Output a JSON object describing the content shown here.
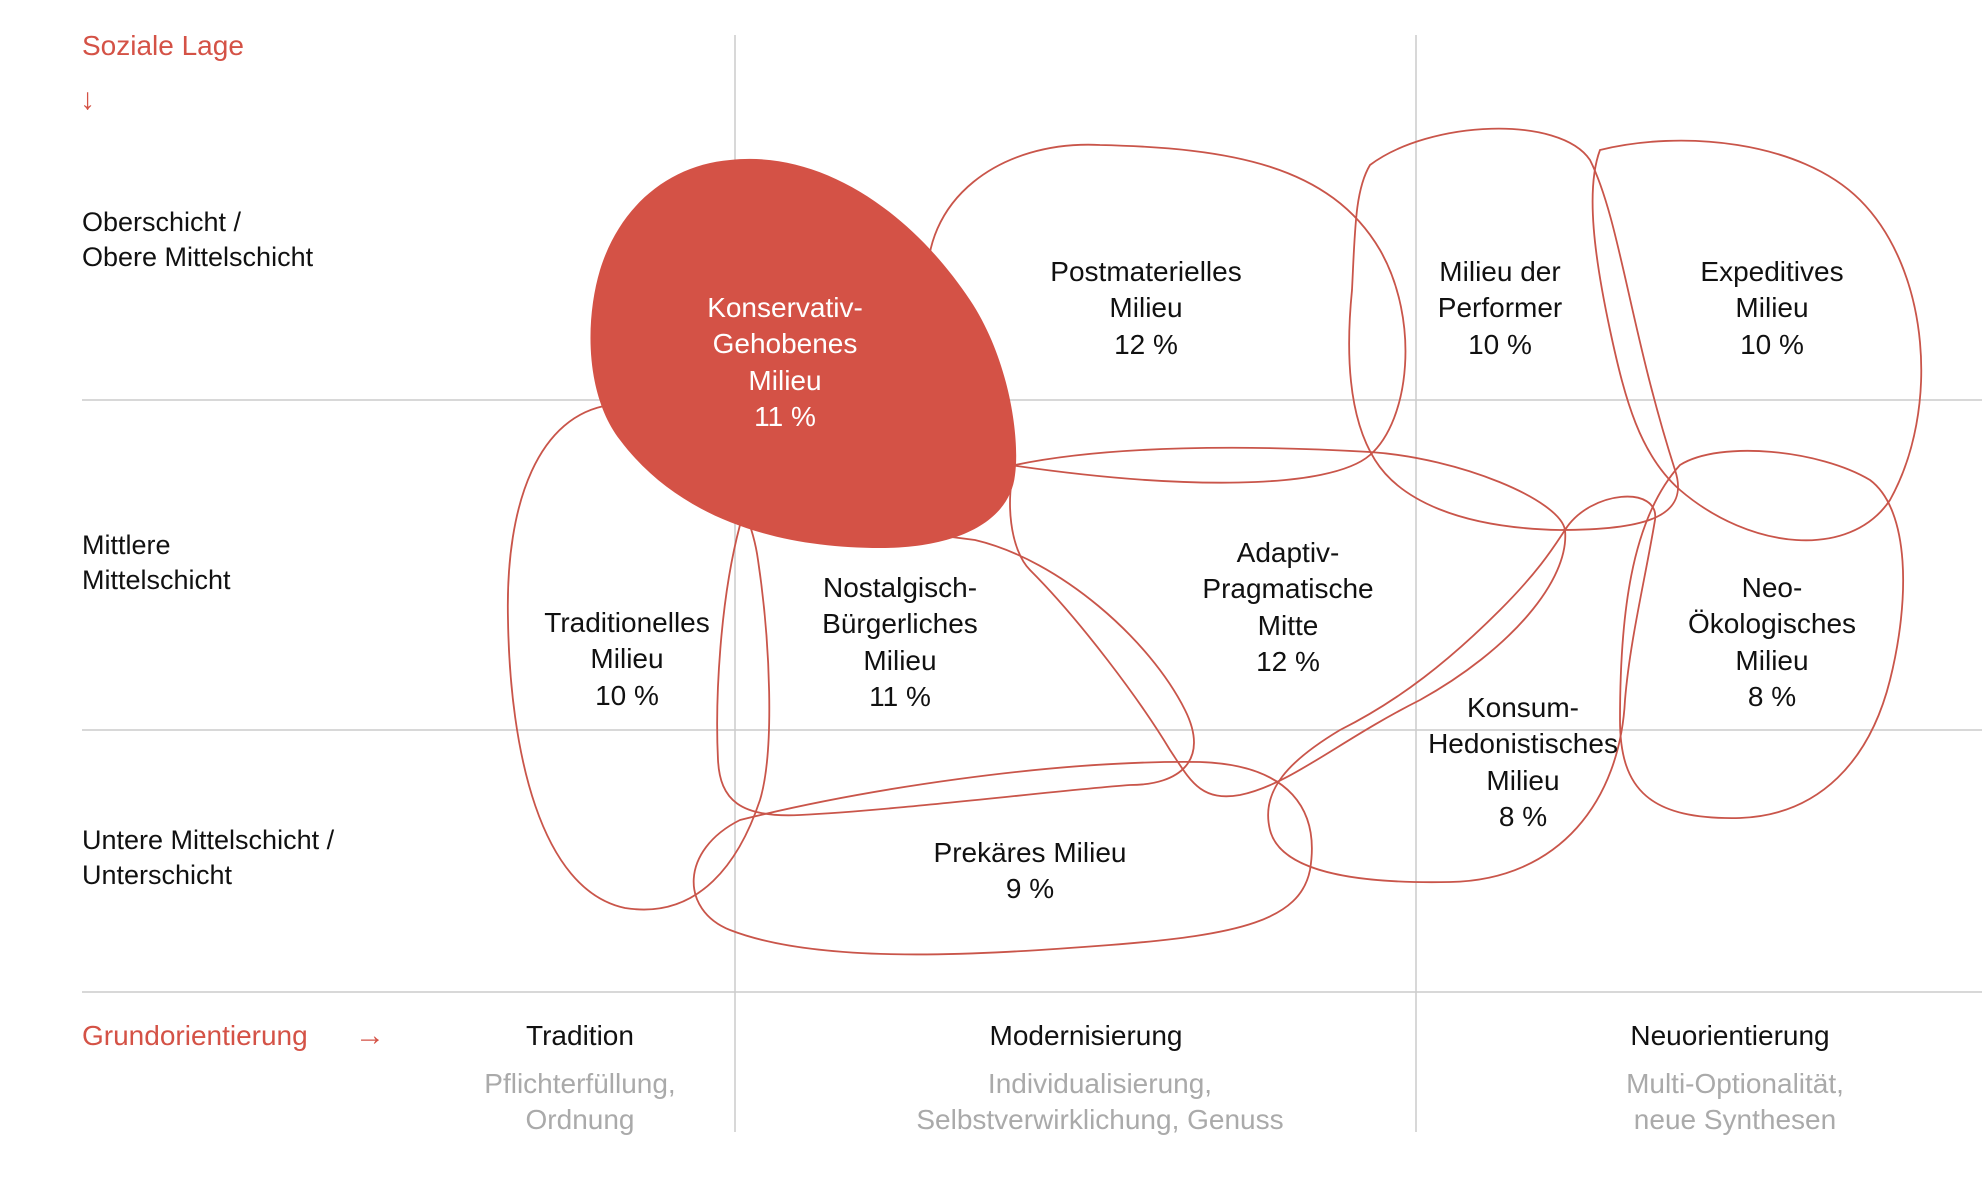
{
  "axes": {
    "y_title": "Soziale Lage",
    "y_arrow": "↓",
    "x_title": "Grundorientierung",
    "x_arrow": "→"
  },
  "rows": [
    "Oberschicht /\nObere Mittelschicht",
    "Mittlere\nMittelschicht",
    "Untere Mittelschicht /\nUnterschicht"
  ],
  "columns": [
    {
      "name": "Tradition",
      "desc": "Pflichterfüllung,\nOrdnung"
    },
    {
      "name": "Modernisierung",
      "desc": "Individualisierung,\nSelbstverwirklichung, Genuss"
    },
    {
      "name": "Neuorientierung",
      "desc": "Multi-Optionalität,\nneue Synthesen"
    }
  ],
  "milieus": [
    {
      "label": "Konservativ-\nGehobenes\nMilieu\n11 %",
      "highlighted": true
    },
    {
      "label": "Postmaterielles\nMilieu\n12 %"
    },
    {
      "label": "Milieu der\nPerformer\n10 %"
    },
    {
      "label": "Expeditives\nMilieu\n10 %"
    },
    {
      "label": "Traditionelles\nMilieu\n10 %"
    },
    {
      "label": "Nostalgisch-\nBürgerliches\nMilieu\n11 %"
    },
    {
      "label": "Adaptiv-\nPragmatische\nMitte\n12 %"
    },
    {
      "label": "Neo-\nÖkologisches\nMilieu\n8 %"
    },
    {
      "label": "Konsum-\nHedonistisches\nMilieu\n8 %"
    },
    {
      "label": "Prekäres Milieu\n9 %"
    }
  ],
  "colors": {
    "accent": "#d45246",
    "outline": "#c9554a",
    "grid": "#cccccc",
    "subtle_text": "#aaaaaa"
  }
}
